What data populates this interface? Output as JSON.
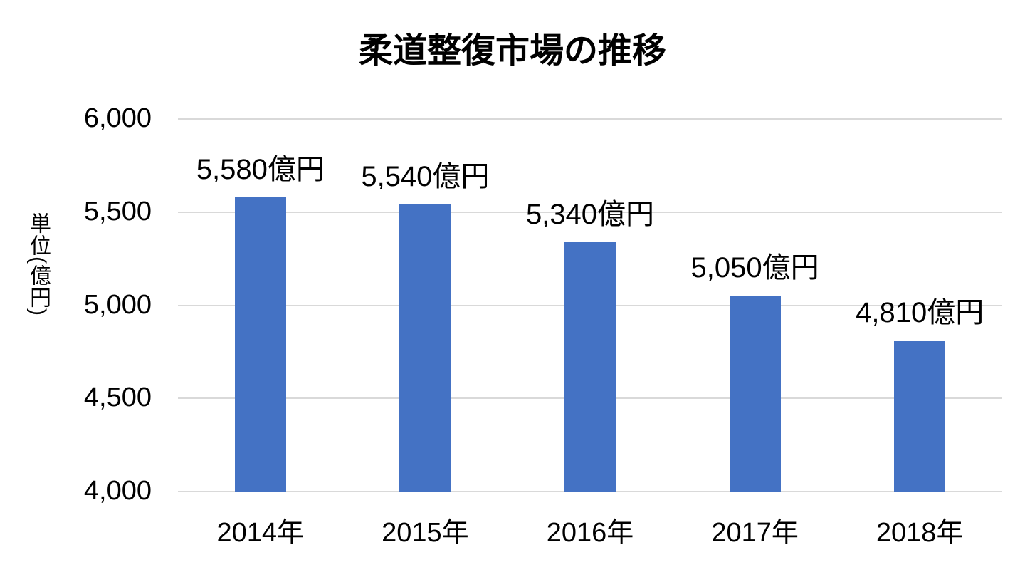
{
  "title": "柔道整復市場の推移",
  "chart_data": {
    "type": "bar",
    "title": "柔道整復市場の推移",
    "categories": [
      "2014年",
      "2015年",
      "2016年",
      "2017年",
      "2018年"
    ],
    "values": [
      5580,
      5540,
      5340,
      5050,
      4810
    ],
    "data_labels": [
      "5,580億円",
      "5,540億円",
      "5,340億円",
      "5,050億円",
      "4,810億円"
    ],
    "xlabel": "",
    "ylabel": "単位(億円)",
    "ylim": [
      4000,
      6000
    ],
    "yticks": [
      6000,
      5500,
      5000,
      4500,
      4000
    ],
    "ytick_labels": [
      "6,000",
      "5,500",
      "5,000",
      "4,500",
      "4,000"
    ],
    "grid": "horizontal-on",
    "legend": "none",
    "colors": {
      "bar": "#4472C4",
      "gridline": "#D9D9D9",
      "text": "#000000",
      "background": "#FFFFFF"
    }
  }
}
